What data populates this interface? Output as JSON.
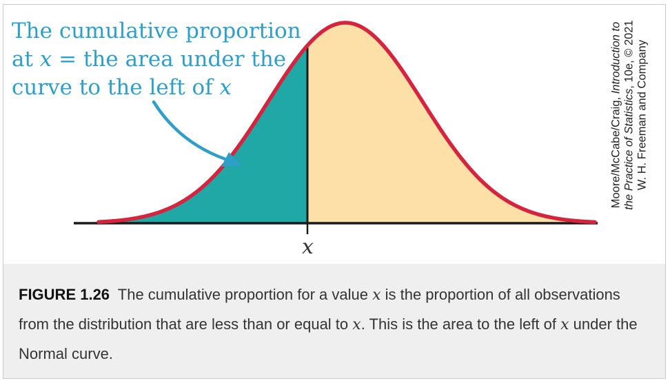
{
  "annotation": {
    "line1": "The cumulative proportion",
    "line2_prefix": "at ",
    "line2_var": "x",
    "line2_suffix": " = the area under the",
    "line3_prefix": "curve to the left of ",
    "line3_var": "x"
  },
  "axis": {
    "tick_label": "x"
  },
  "credit": {
    "line1_normal": "Moore/McCabe/Craig, ",
    "line1_italic": "Introduction to",
    "line2_italic": "the Practice of Statistics",
    "line2_normal": ", 10e, © 2021",
    "line3": "W. H. Freeman and Company"
  },
  "caption": {
    "figure_label": "FIGURE 1.26",
    "part1": "The cumulative proportion for a value ",
    "var1": "x",
    "part2": " is the proportion of all observations from the distribution that are less than or equal to ",
    "var2": "x",
    "part3": ". This is the area to the left of ",
    "var3": "x",
    "part4": " under the Normal curve."
  },
  "colors": {
    "left_fill": "#1fa8a6",
    "right_fill": "#fde0a8",
    "curve": "#d6243f",
    "axis": "#1a1a1a",
    "arrow": "#2e9fc9",
    "annotation_text": "#2e9fc9",
    "caption_bg": "#efefef"
  },
  "icons": {
    "arrow": "curved-arrow-icon"
  }
}
